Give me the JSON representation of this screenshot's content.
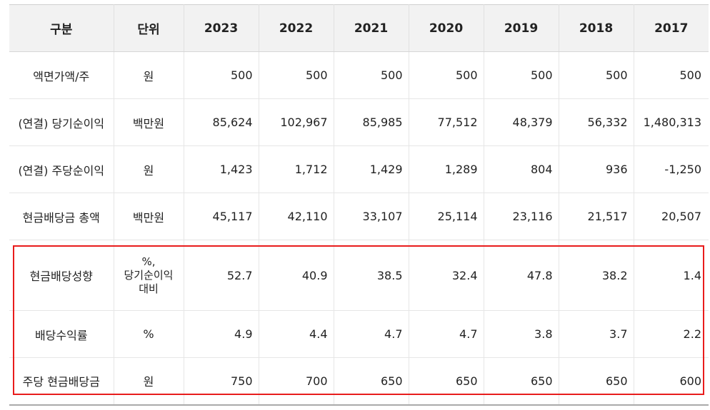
{
  "table": {
    "headers": {
      "label": "구분",
      "unit": "단위",
      "years": [
        "2023",
        "2022",
        "2021",
        "2020",
        "2019",
        "2018",
        "2017"
      ]
    },
    "rows": [
      {
        "label": "액면가액/주",
        "unit": "원",
        "values": [
          "500",
          "500",
          "500",
          "500",
          "500",
          "500",
          "500"
        ]
      },
      {
        "label": "(연결) 당기순이익",
        "unit": "백만원",
        "values": [
          "85,624",
          "102,967",
          "85,985",
          "77,512",
          "48,379",
          "56,332",
          "1,480,313"
        ]
      },
      {
        "label": "(연결) 주당순이익",
        "unit": "원",
        "values": [
          "1,423",
          "1,712",
          "1,429",
          "1,289",
          "804",
          "936",
          "-1,250"
        ]
      },
      {
        "label": "현금배당금 총액",
        "unit": "백만원",
        "values": [
          "45,117",
          "42,110",
          "33,107",
          "25,114",
          "23,116",
          "21,517",
          "20,507"
        ]
      },
      {
        "label": "현금배당성향",
        "unit_lines": [
          "%,",
          "당기순이익",
          "대비"
        ],
        "values": [
          "52.7",
          "40.9",
          "38.5",
          "32.4",
          "47.8",
          "38.2",
          "1.4"
        ]
      },
      {
        "label": "배당수익률",
        "unit": "%",
        "values": [
          "4.9",
          "4.4",
          "4.7",
          "4.7",
          "3.8",
          "3.7",
          "2.2"
        ]
      },
      {
        "label": "주당 현금배당금",
        "unit": "원",
        "values": [
          "750",
          "700",
          "650",
          "650",
          "650",
          "650",
          "600"
        ]
      }
    ]
  },
  "colors": {
    "header_bg": "#f2f2f2",
    "highlight_border": "#e81c1c",
    "text": "#222222"
  }
}
